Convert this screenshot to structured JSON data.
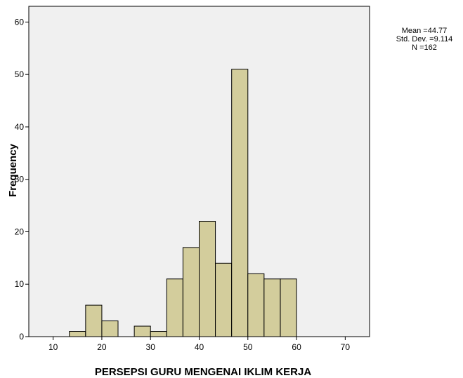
{
  "chart_data": {
    "type": "bar",
    "subtype": "histogram",
    "xlabel": "PERSEPSI GURU MENGENAI IKLIM KERJA",
    "ylabel": "Frequency",
    "xlim": [
      5,
      75
    ],
    "ylim": [
      0,
      63
    ],
    "x_ticks": [
      10,
      20,
      30,
      40,
      50,
      60,
      70
    ],
    "y_ticks": [
      0,
      10,
      20,
      30,
      40,
      50,
      60
    ],
    "bin_width": 3.33,
    "bins": [
      {
        "start": 13.33,
        "count": 1
      },
      {
        "start": 16.67,
        "count": 6
      },
      {
        "start": 20.0,
        "count": 3
      },
      {
        "start": 23.33,
        "count": 0
      },
      {
        "start": 26.67,
        "count": 2
      },
      {
        "start": 30.0,
        "count": 1
      },
      {
        "start": 33.33,
        "count": 11
      },
      {
        "start": 36.67,
        "count": 17
      },
      {
        "start": 40.0,
        "count": 22
      },
      {
        "start": 43.33,
        "count": 14
      },
      {
        "start": 46.67,
        "count": 51
      },
      {
        "start": 50.0,
        "count": 12
      },
      {
        "start": 53.33,
        "count": 11
      },
      {
        "start": 56.67,
        "count": 11
      }
    ],
    "stats": {
      "mean": "Mean =44.77",
      "std_dev": "Std. Dev. =9.114",
      "n": "N =162"
    },
    "colors": {
      "plot_background": "#f0f0f0",
      "bar_fill": "#d3cd9c",
      "bar_stroke": "#000000"
    },
    "grid": false
  }
}
